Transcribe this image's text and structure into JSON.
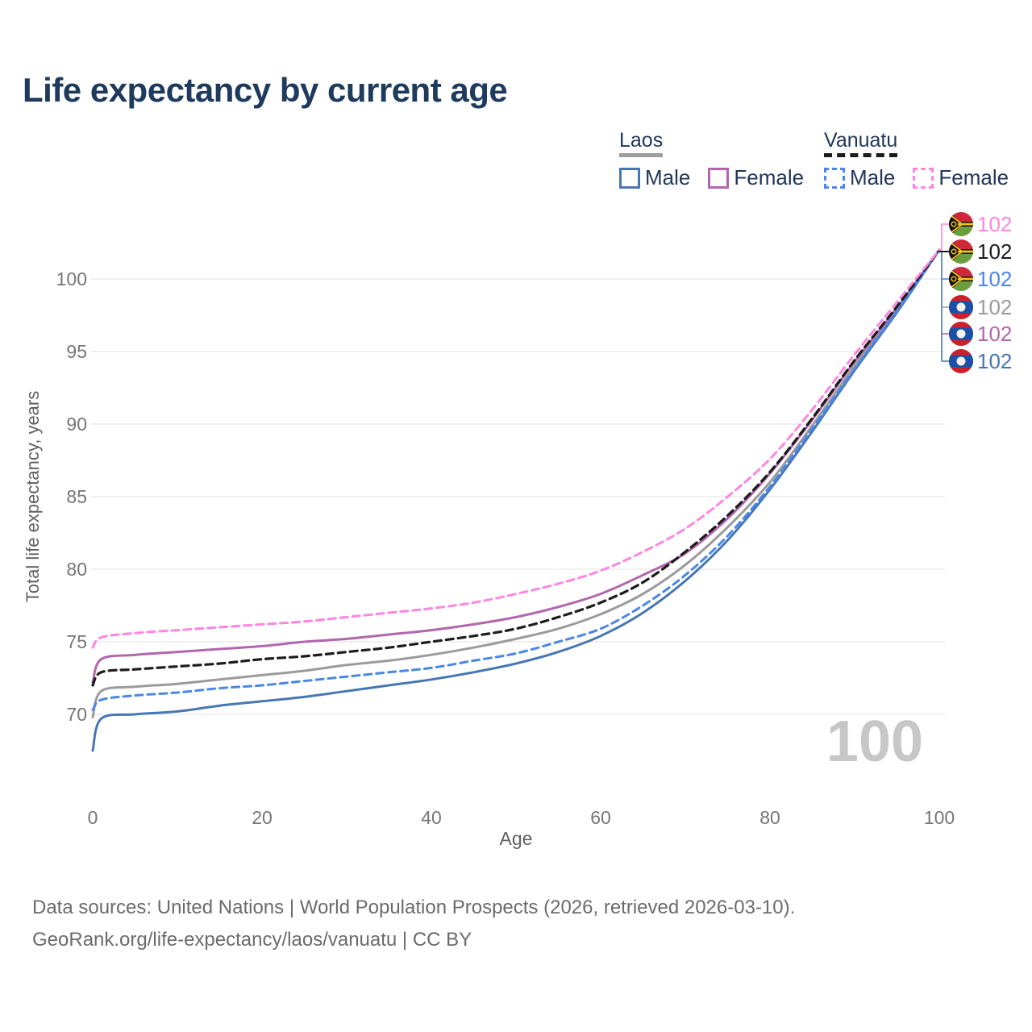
{
  "title": "Life expectancy by current age",
  "legend": {
    "groups": [
      {
        "name": "Laos",
        "line_style": "solid",
        "underline_color": "#9e9e9e",
        "items": [
          {
            "label": "Male",
            "color": "#4677b4"
          },
          {
            "label": "Female",
            "color": "#b266ae"
          }
        ]
      },
      {
        "name": "Vanuatu",
        "line_style": "dashed",
        "underline_color": "#1c1c1c",
        "items": [
          {
            "label": "Male",
            "color": "#4a87e8"
          },
          {
            "label": "Female",
            "color": "#ff85e0"
          }
        ]
      }
    ]
  },
  "axes": {
    "x_title": "Age",
    "y_title": "Total life expectancy, years",
    "x_ticks": [
      0,
      20,
      40,
      60,
      80,
      100
    ],
    "y_ticks": [
      70,
      75,
      80,
      85,
      90,
      95,
      100
    ]
  },
  "watermark": "100",
  "end_labels": [
    {
      "series": "Vanuatu Female",
      "flag": "vanuatu",
      "value": "102",
      "color": "#ff85e0"
    },
    {
      "series": "Vanuatu (both sexes)",
      "flag": "vanuatu",
      "value": "102",
      "color": "#1c1c1c"
    },
    {
      "series": "Vanuatu Male",
      "flag": "vanuatu",
      "value": "102",
      "color": "#4a87e8"
    },
    {
      "series": "Laos (both sexes)",
      "flag": "laos",
      "value": "102",
      "color": "#9b9b9b"
    },
    {
      "series": "Laos Female",
      "flag": "laos",
      "value": "102",
      "color": "#b266ae"
    },
    {
      "series": "Laos Male",
      "flag": "laos",
      "value": "102",
      "color": "#4677b4"
    }
  ],
  "chart_data": {
    "type": "line",
    "title": "Life expectancy by current age",
    "xlabel": "Age",
    "ylabel": "Total life expectancy, years",
    "xlim": [
      0,
      100
    ],
    "ylim": [
      66,
      103
    ],
    "grid": "horizontal",
    "legend_position": "top-right",
    "x": [
      0,
      1,
      5,
      10,
      15,
      20,
      25,
      30,
      35,
      40,
      45,
      50,
      55,
      60,
      65,
      70,
      75,
      80,
      85,
      90,
      95,
      100
    ],
    "series": [
      {
        "name": "Laos (both sexes)",
        "country": "Laos",
        "sex": "total",
        "style": "solid",
        "color": "#9b9b9b",
        "values": [
          69.8,
          71.6,
          71.9,
          72.1,
          72.4,
          72.7,
          73.0,
          73.4,
          73.7,
          74.1,
          74.6,
          75.2,
          75.9,
          76.9,
          78.3,
          80.3,
          82.9,
          86.0,
          89.9,
          94.0,
          97.9,
          102
        ]
      },
      {
        "name": "Laos Female",
        "country": "Laos",
        "sex": "female",
        "style": "solid",
        "color": "#b266ae",
        "values": [
          72.2,
          73.8,
          74.1,
          74.3,
          74.5,
          74.7,
          75.0,
          75.2,
          75.5,
          75.8,
          76.2,
          76.7,
          77.4,
          78.3,
          79.6,
          81.1,
          83.5,
          86.6,
          90.3,
          94.3,
          98.0,
          102
        ]
      },
      {
        "name": "Laos Male",
        "country": "Laos",
        "sex": "male",
        "style": "solid",
        "color": "#4677b4",
        "values": [
          67.5,
          69.7,
          70.0,
          70.2,
          70.6,
          70.9,
          71.2,
          71.6,
          72.0,
          72.4,
          72.9,
          73.5,
          74.3,
          75.4,
          77.0,
          79.2,
          82.0,
          85.5,
          89.5,
          93.7,
          97.7,
          102
        ]
      },
      {
        "name": "Vanuatu Male",
        "country": "Vanuatu",
        "sex": "male",
        "style": "dashed",
        "color": "#4a87e8",
        "values": [
          70.3,
          71.0,
          71.3,
          71.5,
          71.8,
          72.0,
          72.3,
          72.6,
          72.9,
          73.2,
          73.7,
          74.2,
          75.0,
          75.9,
          77.5,
          79.6,
          82.3,
          85.7,
          89.7,
          93.8,
          97.8,
          102
        ]
      },
      {
        "name": "Vanuatu (both sexes)",
        "country": "Vanuatu",
        "sex": "total",
        "style": "dashed",
        "color": "#1c1c1c",
        "values": [
          72.0,
          72.9,
          73.1,
          73.3,
          73.5,
          73.8,
          74.0,
          74.3,
          74.6,
          75.0,
          75.4,
          75.9,
          76.7,
          77.7,
          79.1,
          81.2,
          83.7,
          86.7,
          90.4,
          94.4,
          98.1,
          102
        ]
      },
      {
        "name": "Vanuatu Female",
        "country": "Vanuatu",
        "sex": "female",
        "style": "dashed",
        "color": "#ff85e0",
        "values": [
          74.6,
          75.3,
          75.6,
          75.8,
          76.0,
          76.2,
          76.4,
          76.7,
          77.0,
          77.3,
          77.7,
          78.3,
          79.0,
          79.9,
          81.2,
          82.8,
          85.0,
          87.6,
          91.0,
          94.8,
          98.4,
          102
        ]
      }
    ]
  },
  "footer": {
    "line1": "Data sources: United Nations | World Population Prospects (2026, retrieved 2026-03-10).",
    "line2": "GeoRank.org/life-expectancy/laos/vanuatu | CC BY"
  }
}
